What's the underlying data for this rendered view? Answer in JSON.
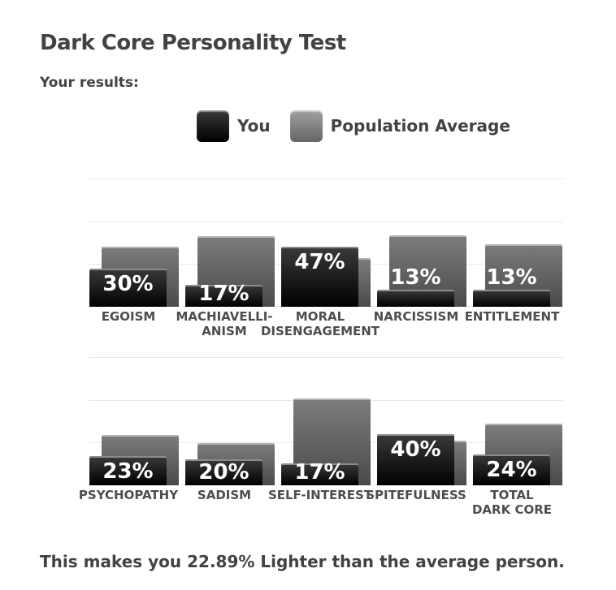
{
  "page": {
    "title": "Dark Core Personality Test",
    "subtitle": "Your results:",
    "summary": "This makes you 22.89% Lighter than the average person."
  },
  "legend": {
    "you_label": "You",
    "population_label": "Population Average"
  },
  "colors": {
    "text": "#424242",
    "label_text": "#4d4d4d",
    "gridline": "#e9e9e9",
    "you_bar_top": "#3a3a3a",
    "you_bar_bottom": "#000000",
    "avg_bar_top": "#7d7d7d",
    "avg_bar_bottom": "#4a4a4a",
    "legend_avg_top": "#a0a0a0",
    "legend_avg_bottom": "#666666",
    "pct_label_color": "#ffffff"
  },
  "chart_data": {
    "type": "bar",
    "unit": "percent",
    "title": "Dark Core Personality Test results",
    "series_names": [
      "You",
      "Population Average"
    ],
    "ylim": [
      0,
      100
    ],
    "gridline_percents": [
      0,
      33.3,
      66.7,
      100
    ],
    "legend_position": "top-center",
    "grid": "horizontal-only",
    "rows": [
      {
        "categories": [
          "EGOISM",
          "MACHIAVELLI-\nANISM",
          "MORAL\nDISENGAGEMENT",
          "NARCISSISM",
          "ENTITLEMENT"
        ],
        "series": [
          {
            "name": "You",
            "values": [
              30,
              17,
              47,
              13,
              13
            ],
            "labels": [
              "30%",
              "17%",
              "47%",
              "13%",
              "13%"
            ]
          },
          {
            "name": "Population Average",
            "values": [
              47,
              55,
              38,
              56,
              49
            ],
            "labels": []
          }
        ]
      },
      {
        "categories": [
          "PSYCHOPATHY",
          "SADISM",
          "SELF-INTEREST",
          "SPITEFULNESS",
          "TOTAL\nDARK CORE"
        ],
        "series": [
          {
            "name": "You",
            "values": [
              23,
              20,
              17,
              40,
              24
            ],
            "labels": [
              "23%",
              "20%",
              "17%",
              "40%",
              "24%"
            ]
          },
          {
            "name": "Population Average",
            "values": [
              39,
              33,
              68,
              35,
              48
            ],
            "labels": []
          }
        ]
      }
    ]
  }
}
